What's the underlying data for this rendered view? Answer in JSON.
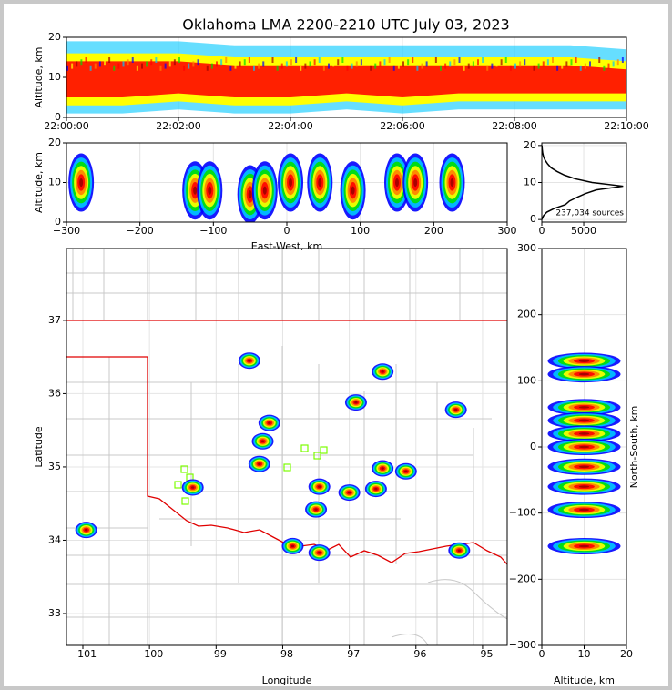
{
  "chart_data": [
    {
      "type": "band",
      "title": "Oklahoma LMA 2200-2210 UTC July 03, 2023",
      "ylabel": "Altitude, km",
      "x": [
        0,
        1,
        2,
        3,
        4,
        5,
        6,
        7,
        8,
        9,
        10
      ],
      "series": [
        {
          "values": [
            5,
            5,
            6,
            5,
            5,
            6,
            5,
            6,
            6,
            6,
            6
          ]
        },
        {
          "values": [
            14,
            14,
            14,
            13,
            13,
            13,
            13,
            13,
            13,
            13,
            12
          ]
        }
      ],
      "xlim": [
        0,
        10
      ],
      "ylim": [
        0,
        20
      ],
      "xticks": [
        {
          "value": 0,
          "label": "22:00:00"
        },
        {
          "value": 2,
          "label": "22:02:00"
        },
        {
          "value": 4,
          "label": "22:04:00"
        },
        {
          "value": 6,
          "label": "22:06:00"
        },
        {
          "value": 8,
          "label": "22:08:00"
        },
        {
          "value": 10,
          "label": "22:10:00"
        }
      ],
      "yticks": [
        0,
        10,
        20
      ],
      "grid": true
    },
    {
      "type": "scatter",
      "xlabel": "East-West, km",
      "ylabel": "Altitude, km",
      "x": [
        -280,
        -125,
        -105,
        -50,
        -30,
        5,
        45,
        90,
        150,
        175,
        225
      ],
      "values": [
        10,
        8,
        8,
        7,
        8,
        10,
        10,
        8,
        10,
        10,
        10
      ],
      "xlim": [
        -300,
        300
      ],
      "ylim": [
        0,
        20
      ],
      "xticks": [
        {
          "value": -300,
          "label": "−300"
        },
        {
          "value": -200,
          "label": "−200"
        },
        {
          "value": -100,
          "label": "−100"
        },
        0,
        100,
        200,
        300
      ],
      "yticks": [
        0,
        10,
        20
      ],
      "grid": true
    },
    {
      "type": "line",
      "annotation": "237,034 sources",
      "x": [
        0,
        200,
        600,
        1500,
        2800,
        3300,
        4200,
        5200,
        6500,
        9700,
        6000,
        4000,
        2700,
        1800,
        1100,
        700,
        400,
        200,
        100,
        50,
        20
      ],
      "values": [
        0,
        1,
        2,
        3,
        4,
        5,
        6,
        7,
        8,
        9,
        10,
        11,
        12,
        13,
        14,
        15,
        16,
        17,
        18,
        19,
        20
      ],
      "xlim": [
        0,
        10100
      ],
      "ylim": [
        -0.7,
        20.7
      ],
      "xticks": [
        0,
        5000
      ],
      "yticks": [
        0,
        10,
        20
      ],
      "grid": true
    },
    {
      "type": "scatter",
      "xlabel": "Longitude",
      "ylabel": "Latitude",
      "x": [
        -98.5,
        -96.5,
        -96.9,
        -95.4,
        -98.2,
        -98.3,
        -98.35,
        -99.35,
        -97.5,
        -97.45,
        -96.15,
        -96.5,
        -96.6,
        -97.0,
        -97.85,
        -97.45,
        -95.35,
        -100.95
      ],
      "values": [
        36.45,
        36.3,
        35.88,
        35.78,
        35.6,
        35.35,
        35.04,
        34.72,
        34.42,
        34.73,
        34.94,
        34.98,
        34.7,
        34.65,
        33.92,
        33.83,
        33.86,
        34.14
      ],
      "xlim": [
        -101.246,
        -94.63
      ],
      "ylim": [
        32.565,
        37.98
      ],
      "xticks": [
        {
          "value": -101,
          "label": "−101"
        },
        {
          "value": -100,
          "label": "−100"
        },
        {
          "value": -99,
          "label": "−99"
        },
        {
          "value": -98,
          "label": "−98"
        },
        {
          "value": -97,
          "label": "−97"
        },
        {
          "value": -96,
          "label": "−96"
        },
        {
          "value": -95,
          "label": "−95"
        }
      ],
      "yticks": [
        33,
        34,
        35,
        36,
        37
      ],
      "grid": true
    },
    {
      "type": "scatter",
      "xlabel": "Altitude, km",
      "ylabel": "North-South, km",
      "x": [
        10,
        10,
        10,
        10,
        10,
        10,
        10,
        10,
        10,
        10
      ],
      "values": [
        130,
        110,
        60,
        40,
        20,
        0,
        -30,
        -60,
        -95,
        -150
      ],
      "xlim": [
        0,
        20
      ],
      "ylim": [
        -300,
        300
      ],
      "xticks": [
        0,
        10,
        20
      ],
      "yticks": [
        {
          "value": -300,
          "label": "−300"
        },
        {
          "value": -200,
          "label": "−200"
        },
        {
          "value": -100,
          "label": "−100"
        },
        0,
        100,
        200,
        300
      ],
      "grid": true
    }
  ]
}
